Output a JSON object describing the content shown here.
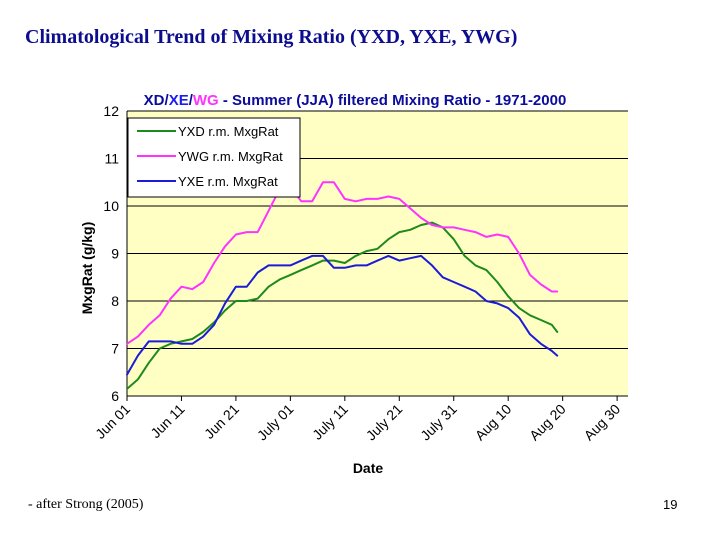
{
  "slide": {
    "title": "Climatological Trend of Mixing Ratio (YXD, YXE, YWG)",
    "footer_note": "- after Strong (2005)",
    "page_number": "19"
  },
  "chart_data": {
    "type": "line",
    "title_parts": [
      {
        "text": "XD",
        "color": "#0b0b9c"
      },
      {
        "text": "/",
        "color": "#0b0b9c"
      },
      {
        "text": "XE",
        "color": "#1c1cf0"
      },
      {
        "text": "/",
        "color": "#0b0b9c"
      },
      {
        "text": "WG",
        "color": "#ff33ff"
      },
      {
        "text": " - Summer (JJA) filtered Mixing Ratio - 1971-2000",
        "color": "#0b0b9c"
      }
    ],
    "xlabel": "Date",
    "ylabel": "MxgRat  (g/kg)",
    "ylim": [
      6,
      12
    ],
    "yticks": [
      6,
      7,
      8,
      9,
      10,
      11,
      12
    ],
    "x_range": [
      0,
      92
    ],
    "xticks": [
      {
        "label": "Jun 01",
        "x": 0
      },
      {
        "label": "Jun 11",
        "x": 10
      },
      {
        "label": "Jun 21",
        "x": 20
      },
      {
        "label": "July 01",
        "x": 30
      },
      {
        "label": "July 11",
        "x": 40
      },
      {
        "label": "July 21",
        "x": 50
      },
      {
        "label": "July 31",
        "x": 60
      },
      {
        "label": "Aug 10",
        "x": 70
      },
      {
        "label": "Aug 20",
        "x": 80
      },
      {
        "label": "Aug 30",
        "x": 90
      }
    ],
    "grid": true,
    "legend_position": "top-left",
    "colors": {
      "plot_background": "#ffffc4",
      "chart_background": "#ffffff",
      "gridline": "#000000"
    },
    "series": [
      {
        "name": "YXD r.m. MxgRat",
        "color": "#1e8a1e",
        "points": [
          [
            0,
            6.15
          ],
          [
            2,
            6.35
          ],
          [
            4,
            6.7
          ],
          [
            6,
            7.0
          ],
          [
            8,
            7.1
          ],
          [
            10,
            7.15
          ],
          [
            12,
            7.2
          ],
          [
            14,
            7.35
          ],
          [
            16,
            7.55
          ],
          [
            18,
            7.8
          ],
          [
            20,
            8.0
          ],
          [
            22,
            8.0
          ],
          [
            24,
            8.05
          ],
          [
            26,
            8.3
          ],
          [
            28,
            8.45
          ],
          [
            30,
            8.55
          ],
          [
            32,
            8.65
          ],
          [
            34,
            8.75
          ],
          [
            36,
            8.85
          ],
          [
            38,
            8.85
          ],
          [
            40,
            8.8
          ],
          [
            42,
            8.95
          ],
          [
            44,
            9.05
          ],
          [
            46,
            9.1
          ],
          [
            48,
            9.3
          ],
          [
            50,
            9.45
          ],
          [
            52,
            9.5
          ],
          [
            54,
            9.6
          ],
          [
            56,
            9.65
          ],
          [
            58,
            9.55
          ],
          [
            60,
            9.3
          ],
          [
            62,
            8.95
          ],
          [
            64,
            8.75
          ],
          [
            66,
            8.65
          ],
          [
            68,
            8.4
          ],
          [
            70,
            8.1
          ],
          [
            72,
            7.85
          ],
          [
            74,
            7.7
          ],
          [
            76,
            7.6
          ],
          [
            78,
            7.5
          ],
          [
            79,
            7.35
          ]
        ]
      },
      {
        "name": "YWG r.m. MxgRat",
        "color": "#ff33ff",
        "points": [
          [
            0,
            7.1
          ],
          [
            2,
            7.25
          ],
          [
            4,
            7.5
          ],
          [
            6,
            7.7
          ],
          [
            8,
            8.05
          ],
          [
            10,
            8.3
          ],
          [
            12,
            8.25
          ],
          [
            14,
            8.4
          ],
          [
            16,
            8.8
          ],
          [
            18,
            9.15
          ],
          [
            20,
            9.4
          ],
          [
            22,
            9.45
          ],
          [
            24,
            9.45
          ],
          [
            26,
            9.9
          ],
          [
            28,
            10.35
          ],
          [
            30,
            10.4
          ],
          [
            32,
            10.1
          ],
          [
            34,
            10.1
          ],
          [
            36,
            10.5
          ],
          [
            38,
            10.5
          ],
          [
            40,
            10.15
          ],
          [
            42,
            10.1
          ],
          [
            44,
            10.15
          ],
          [
            46,
            10.15
          ],
          [
            48,
            10.2
          ],
          [
            50,
            10.15
          ],
          [
            52,
            9.95
          ],
          [
            54,
            9.75
          ],
          [
            56,
            9.6
          ],
          [
            58,
            9.55
          ],
          [
            60,
            9.55
          ],
          [
            62,
            9.5
          ],
          [
            64,
            9.45
          ],
          [
            66,
            9.35
          ],
          [
            68,
            9.4
          ],
          [
            70,
            9.35
          ],
          [
            72,
            9.0
          ],
          [
            74,
            8.55
          ],
          [
            76,
            8.35
          ],
          [
            78,
            8.2
          ],
          [
            79,
            8.2
          ]
        ]
      },
      {
        "name": "YXE r.m. MxgRat",
        "color": "#1c1cd6",
        "points": [
          [
            0,
            6.45
          ],
          [
            2,
            6.85
          ],
          [
            4,
            7.15
          ],
          [
            6,
            7.15
          ],
          [
            8,
            7.15
          ],
          [
            10,
            7.1
          ],
          [
            12,
            7.1
          ],
          [
            14,
            7.25
          ],
          [
            16,
            7.5
          ],
          [
            18,
            7.95
          ],
          [
            20,
            8.3
          ],
          [
            22,
            8.3
          ],
          [
            24,
            8.6
          ],
          [
            26,
            8.75
          ],
          [
            28,
            8.75
          ],
          [
            30,
            8.75
          ],
          [
            32,
            8.85
          ],
          [
            34,
            8.95
          ],
          [
            36,
            8.95
          ],
          [
            38,
            8.7
          ],
          [
            40,
            8.7
          ],
          [
            42,
            8.75
          ],
          [
            44,
            8.75
          ],
          [
            46,
            8.85
          ],
          [
            48,
            8.95
          ],
          [
            50,
            8.85
          ],
          [
            52,
            8.9
          ],
          [
            54,
            8.95
          ],
          [
            56,
            8.75
          ],
          [
            58,
            8.5
          ],
          [
            60,
            8.4
          ],
          [
            62,
            8.3
          ],
          [
            64,
            8.2
          ],
          [
            66,
            8.0
          ],
          [
            68,
            7.95
          ],
          [
            70,
            7.85
          ],
          [
            72,
            7.65
          ],
          [
            74,
            7.3
          ],
          [
            76,
            7.1
          ],
          [
            78,
            6.95
          ],
          [
            79,
            6.85
          ]
        ]
      }
    ]
  }
}
